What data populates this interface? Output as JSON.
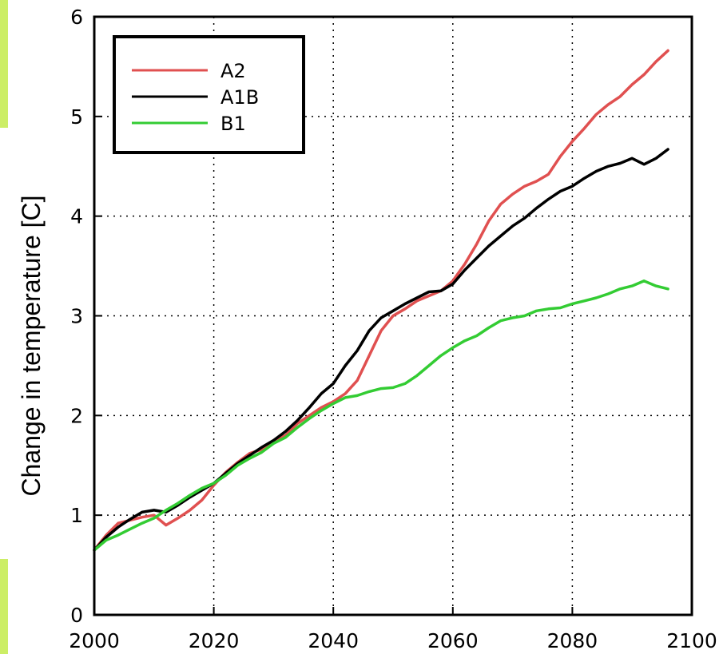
{
  "chart_data": {
    "type": "line",
    "title": "",
    "xlabel": "",
    "ylabel": "Change in temperature [C]",
    "xlim": [
      2000,
      2100
    ],
    "ylim": [
      0,
      6
    ],
    "xticks": [
      "2000",
      "2020",
      "2040",
      "2060",
      "2080",
      "2100"
    ],
    "yticks": [
      "0",
      "1",
      "2",
      "3",
      "4",
      "5",
      "6"
    ],
    "grid": true,
    "legend_position": "top-left",
    "series": [
      {
        "name": "A2",
        "color": "#e05050",
        "x": [
          2000,
          2002,
          2004,
          2006,
          2008,
          2010,
          2012,
          2014,
          2016,
          2018,
          2020,
          2022,
          2024,
          2026,
          2028,
          2030,
          2032,
          2034,
          2036,
          2038,
          2040,
          2042,
          2044,
          2046,
          2048,
          2050,
          2052,
          2054,
          2056,
          2058,
          2060,
          2062,
          2064,
          2066,
          2068,
          2070,
          2072,
          2074,
          2076,
          2078,
          2080,
          2082,
          2084,
          2086,
          2088,
          2090,
          2092,
          2094,
          2096
        ],
        "y": [
          0.65,
          0.8,
          0.92,
          0.95,
          0.98,
          1.0,
          0.9,
          0.97,
          1.05,
          1.15,
          1.3,
          1.43,
          1.53,
          1.62,
          1.66,
          1.75,
          1.8,
          1.92,
          2.0,
          2.08,
          2.14,
          2.22,
          2.35,
          2.6,
          2.85,
          3.0,
          3.07,
          3.15,
          3.2,
          3.25,
          3.35,
          3.52,
          3.72,
          3.95,
          4.12,
          4.22,
          4.3,
          4.35,
          4.42,
          4.6,
          4.75,
          4.88,
          5.02,
          5.12,
          5.2,
          5.32,
          5.42,
          5.55,
          5.66
        ]
      },
      {
        "name": "A1B",
        "color": "#000000",
        "x": [
          2000,
          2002,
          2004,
          2006,
          2008,
          2010,
          2012,
          2014,
          2016,
          2018,
          2020,
          2022,
          2024,
          2026,
          2028,
          2030,
          2032,
          2034,
          2036,
          2038,
          2040,
          2042,
          2044,
          2046,
          2048,
          2050,
          2052,
          2054,
          2056,
          2058,
          2060,
          2062,
          2064,
          2066,
          2068,
          2070,
          2072,
          2074,
          2076,
          2078,
          2080,
          2082,
          2084,
          2086,
          2088,
          2090,
          2092,
          2094,
          2096
        ],
        "y": [
          0.65,
          0.78,
          0.88,
          0.96,
          1.03,
          1.05,
          1.03,
          1.1,
          1.18,
          1.25,
          1.32,
          1.42,
          1.52,
          1.6,
          1.68,
          1.75,
          1.84,
          1.95,
          2.08,
          2.22,
          2.32,
          2.5,
          2.65,
          2.85,
          2.98,
          3.05,
          3.12,
          3.18,
          3.24,
          3.25,
          3.32,
          3.46,
          3.58,
          3.7,
          3.8,
          3.9,
          3.98,
          4.08,
          4.17,
          4.25,
          4.3,
          4.38,
          4.45,
          4.5,
          4.53,
          4.58,
          4.52,
          4.58,
          4.67
        ]
      },
      {
        "name": "B1",
        "color": "#33cc33",
        "x": [
          2000,
          2002,
          2004,
          2006,
          2008,
          2010,
          2012,
          2014,
          2016,
          2018,
          2020,
          2022,
          2024,
          2026,
          2028,
          2030,
          2032,
          2034,
          2036,
          2038,
          2040,
          2042,
          2044,
          2046,
          2048,
          2050,
          2052,
          2054,
          2056,
          2058,
          2060,
          2062,
          2064,
          2066,
          2068,
          2070,
          2072,
          2074,
          2076,
          2078,
          2080,
          2082,
          2084,
          2086,
          2088,
          2090,
          2092,
          2094,
          2096
        ],
        "y": [
          0.65,
          0.75,
          0.8,
          0.86,
          0.92,
          0.97,
          1.05,
          1.12,
          1.2,
          1.27,
          1.32,
          1.4,
          1.5,
          1.57,
          1.63,
          1.72,
          1.78,
          1.88,
          1.97,
          2.05,
          2.12,
          2.18,
          2.2,
          2.24,
          2.27,
          2.28,
          2.32,
          2.4,
          2.5,
          2.6,
          2.68,
          2.75,
          2.8,
          2.88,
          2.95,
          2.98,
          3.0,
          3.05,
          3.07,
          3.08,
          3.12,
          3.15,
          3.18,
          3.22,
          3.27,
          3.3,
          3.35,
          3.3,
          3.27
        ]
      }
    ]
  }
}
